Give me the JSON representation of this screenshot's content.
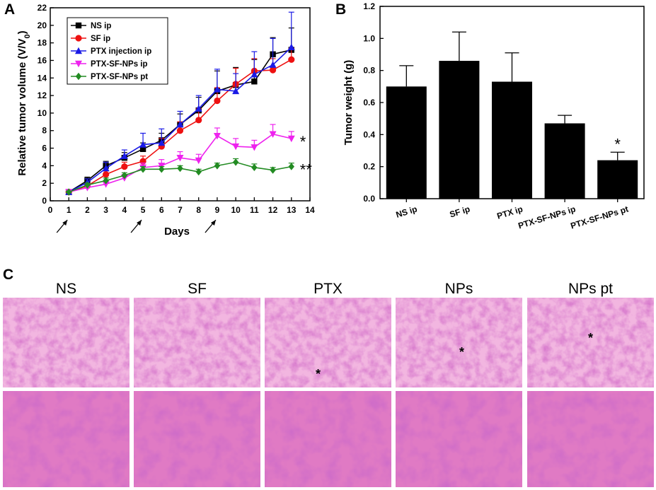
{
  "panels": {
    "a": {
      "letter": "A",
      "ylabel_prefix": "Relative tumor volume (V/V",
      "ylabel_sub": "0",
      "ylabel_suffix": ")",
      "xlabel": "Days"
    },
    "b": {
      "letter": "B"
    },
    "c": {
      "letter": "C"
    }
  },
  "chart_data": [
    {
      "id": "A",
      "type": "line",
      "title": "",
      "xlabel": "Days",
      "ylabel": "Relative tumor volume (V/V0)",
      "xlim": [
        0,
        14
      ],
      "ylim": [
        0,
        22
      ],
      "xticks": [
        0,
        1,
        2,
        3,
        4,
        5,
        6,
        7,
        8,
        9,
        10,
        11,
        12,
        13,
        14
      ],
      "yticks": [
        0,
        2,
        4,
        6,
        8,
        10,
        12,
        14,
        16,
        18,
        20,
        22
      ],
      "x": [
        1,
        2,
        3,
        4,
        5,
        6,
        7,
        8,
        9,
        10,
        11,
        12,
        13
      ],
      "injection_days": [
        1,
        5,
        9
      ],
      "legend_position": "top-left",
      "series": [
        {
          "name": "NS ip",
          "color": "#000000",
          "marker": "square",
          "values": [
            1.0,
            2.3,
            4.0,
            4.9,
            5.9,
            6.9,
            8.7,
            10.3,
            12.5,
            13.2,
            13.6,
            16.7,
            17.2
          ],
          "errors": [
            0.1,
            0.4,
            0.5,
            0.6,
            0.7,
            0.8,
            1.2,
            1.5,
            2.3,
            2.0,
            2.5,
            1.9,
            2.5
          ]
        },
        {
          "name": "SF ip",
          "color": "#ee1111",
          "marker": "circle",
          "values": [
            1.0,
            1.7,
            3.0,
            3.9,
            4.5,
            6.2,
            8.0,
            9.2,
            11.4,
            13.3,
            14.8,
            14.9,
            16.1
          ],
          "errors": [
            0.1,
            0.3,
            0.4,
            0.5,
            0.6,
            0.9,
            1.0,
            1.3,
            1.5,
            1.8,
            1.4,
            1.3,
            1.3
          ]
        },
        {
          "name": "PTX injection ip",
          "color": "#1a1ae6",
          "marker": "triangle-up",
          "values": [
            1.0,
            2.1,
            3.7,
            5.1,
            6.4,
            6.6,
            8.7,
            10.5,
            12.7,
            12.5,
            14.4,
            15.5,
            17.5
          ],
          "errors": [
            0.1,
            0.4,
            0.7,
            0.7,
            1.3,
            1.6,
            1.5,
            1.5,
            2.3,
            2.0,
            2.6,
            3.0,
            4.0
          ]
        },
        {
          "name": "PTX-SF-NPs ip",
          "color": "#ee22ee",
          "marker": "triangle-down",
          "values": [
            1.0,
            1.5,
            1.9,
            2.6,
            3.8,
            4.0,
            4.9,
            4.6,
            7.4,
            6.2,
            6.1,
            7.6,
            7.1
          ],
          "errors": [
            0.1,
            0.3,
            0.4,
            0.4,
            0.5,
            0.7,
            0.7,
            0.7,
            0.9,
            0.9,
            0.8,
            1.1,
            0.8
          ]
        },
        {
          "name": "PTX-SF-NPs pt",
          "color": "#228b22",
          "marker": "diamond",
          "values": [
            1.0,
            1.8,
            2.3,
            2.9,
            3.6,
            3.6,
            3.7,
            3.3,
            4.0,
            4.4,
            3.8,
            3.5,
            3.9
          ],
          "errors": [
            0.1,
            0.2,
            0.3,
            0.3,
            0.3,
            0.3,
            0.3,
            0.3,
            0.3,
            0.4,
            0.4,
            0.3,
            0.4
          ]
        }
      ],
      "annotations": [
        {
          "text": "*",
          "near_series": "PTX-SF-NPs ip"
        },
        {
          "text": "**",
          "near_series": "PTX-SF-NPs pt"
        }
      ]
    },
    {
      "id": "B",
      "type": "bar",
      "title": "",
      "xlabel": "",
      "ylabel": "Tumor weight (g)",
      "ylim": [
        0,
        1.2
      ],
      "yticks": [
        0.0,
        0.2,
        0.4,
        0.6,
        0.8,
        1.0,
        1.2
      ],
      "categories": [
        "NS ip",
        "SF ip",
        "PTX ip",
        "PTX-SF-NPs ip",
        "PTX-SF-NPs pt"
      ],
      "values": [
        0.7,
        0.86,
        0.73,
        0.47,
        0.24
      ],
      "errors": [
        0.13,
        0.18,
        0.18,
        0.05,
        0.05
      ],
      "bar_color": "#000000",
      "annotations": [
        {
          "text": "*",
          "category": "PTX-SF-NPs pt"
        }
      ]
    }
  ],
  "histology": {
    "columns": [
      {
        "title": "NS",
        "marker": ""
      },
      {
        "title": "SF",
        "marker": ""
      },
      {
        "title": "PTX",
        "marker": "*"
      },
      {
        "title": "NPs",
        "marker": "*"
      },
      {
        "title": "NPs pt",
        "marker": "*"
      }
    ]
  },
  "colors": {
    "stain_base": "#e07ac4",
    "stain_light": "#f2b6e0",
    "stain_dark": "#a8479a"
  }
}
